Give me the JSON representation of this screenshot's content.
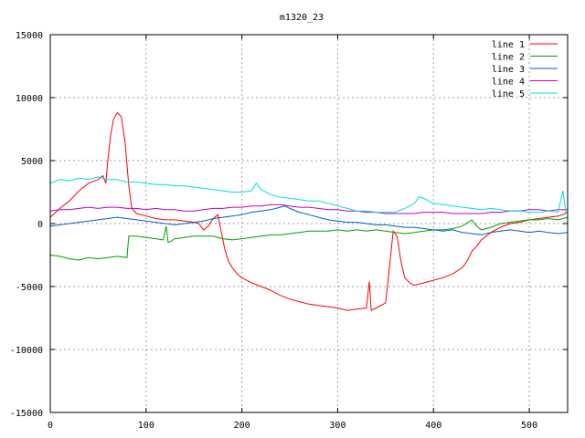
{
  "chart_data": {
    "type": "line",
    "title": "m1320_23",
    "xlabel": "",
    "ylabel": "",
    "xlim": [
      0,
      540
    ],
    "ylim": [
      -15000,
      15000
    ],
    "x_ticks": [
      0,
      100,
      200,
      300,
      400,
      500
    ],
    "y_ticks": [
      -15000,
      -10000,
      -5000,
      0,
      5000,
      10000,
      15000
    ],
    "grid": true,
    "legend_position": "top-right",
    "series": [
      {
        "name": "line 1",
        "color": "#ff0000",
        "points": [
          [
            0,
            500
          ],
          [
            10,
            1200
          ],
          [
            20,
            1800
          ],
          [
            30,
            2600
          ],
          [
            40,
            3200
          ],
          [
            50,
            3500
          ],
          [
            55,
            3800
          ],
          [
            58,
            3200
          ],
          [
            60,
            5000
          ],
          [
            63,
            7000
          ],
          [
            66,
            8300
          ],
          [
            70,
            8800
          ],
          [
            74,
            8500
          ],
          [
            78,
            6500
          ],
          [
            82,
            3000
          ],
          [
            85,
            1200
          ],
          [
            90,
            800
          ],
          [
            100,
            600
          ],
          [
            110,
            400
          ],
          [
            120,
            300
          ],
          [
            130,
            300
          ],
          [
            140,
            200
          ],
          [
            150,
            100
          ],
          [
            155,
            0
          ],
          [
            160,
            -500
          ],
          [
            165,
            -200
          ],
          [
            170,
            400
          ],
          [
            175,
            700
          ],
          [
            178,
            -500
          ],
          [
            182,
            -2000
          ],
          [
            186,
            -3000
          ],
          [
            190,
            -3500
          ],
          [
            195,
            -4000
          ],
          [
            200,
            -4300
          ],
          [
            210,
            -4700
          ],
          [
            220,
            -5000
          ],
          [
            230,
            -5300
          ],
          [
            240,
            -5700
          ],
          [
            250,
            -6000
          ],
          [
            260,
            -6200
          ],
          [
            270,
            -6400
          ],
          [
            280,
            -6500
          ],
          [
            290,
            -6600
          ],
          [
            300,
            -6700
          ],
          [
            310,
            -6900
          ],
          [
            320,
            -6800
          ],
          [
            330,
            -6700
          ],
          [
            333,
            -4600
          ],
          [
            335,
            -6900
          ],
          [
            340,
            -6700
          ],
          [
            350,
            -6300
          ],
          [
            354,
            -3500
          ],
          [
            358,
            -600
          ],
          [
            362,
            -1000
          ],
          [
            366,
            -3000
          ],
          [
            370,
            -4300
          ],
          [
            375,
            -4700
          ],
          [
            380,
            -4900
          ],
          [
            390,
            -4700
          ],
          [
            400,
            -4500
          ],
          [
            410,
            -4300
          ],
          [
            420,
            -4000
          ],
          [
            430,
            -3500
          ],
          [
            435,
            -3000
          ],
          [
            440,
            -2200
          ],
          [
            445,
            -1800
          ],
          [
            450,
            -1300
          ],
          [
            460,
            -700
          ],
          [
            470,
            -300
          ],
          [
            480,
            0
          ],
          [
            490,
            100
          ],
          [
            500,
            300
          ],
          [
            510,
            400
          ],
          [
            520,
            500
          ],
          [
            530,
            600
          ],
          [
            535,
            700
          ],
          [
            540,
            900
          ]
        ]
      },
      {
        "name": "line 2",
        "color": "#00a000",
        "points": [
          [
            0,
            -2500
          ],
          [
            10,
            -2600
          ],
          [
            20,
            -2800
          ],
          [
            30,
            -2900
          ],
          [
            40,
            -2700
          ],
          [
            50,
            -2800
          ],
          [
            60,
            -2700
          ],
          [
            70,
            -2600
          ],
          [
            80,
            -2700
          ],
          [
            82,
            -1000
          ],
          [
            85,
            -1000
          ],
          [
            90,
            -1000
          ],
          [
            100,
            -1100
          ],
          [
            110,
            -1200
          ],
          [
            118,
            -1300
          ],
          [
            121,
            -200
          ],
          [
            123,
            -1500
          ],
          [
            126,
            -1400
          ],
          [
            130,
            -1200
          ],
          [
            140,
            -1100
          ],
          [
            150,
            -1000
          ],
          [
            160,
            -1000
          ],
          [
            170,
            -1000
          ],
          [
            180,
            -1200
          ],
          [
            190,
            -1300
          ],
          [
            200,
            -1200
          ],
          [
            210,
            -1100
          ],
          [
            220,
            -1000
          ],
          [
            230,
            -900
          ],
          [
            240,
            -900
          ],
          [
            250,
            -800
          ],
          [
            260,
            -700
          ],
          [
            270,
            -600
          ],
          [
            280,
            -600
          ],
          [
            290,
            -600
          ],
          [
            300,
            -500
          ],
          [
            310,
            -600
          ],
          [
            320,
            -500
          ],
          [
            330,
            -600
          ],
          [
            340,
            -500
          ],
          [
            350,
            -600
          ],
          [
            360,
            -700
          ],
          [
            370,
            -800
          ],
          [
            380,
            -700
          ],
          [
            390,
            -600
          ],
          [
            400,
            -500
          ],
          [
            410,
            -500
          ],
          [
            420,
            -400
          ],
          [
            430,
            -200
          ],
          [
            440,
            300
          ],
          [
            445,
            -200
          ],
          [
            450,
            -500
          ],
          [
            460,
            -300
          ],
          [
            470,
            0
          ],
          [
            480,
            100
          ],
          [
            490,
            200
          ],
          [
            500,
            300
          ],
          [
            510,
            300
          ],
          [
            520,
            400
          ],
          [
            530,
            300
          ],
          [
            540,
            500
          ]
        ]
      },
      {
        "name": "line 3",
        "color": "#0060c0",
        "points": [
          [
            0,
            -200
          ],
          [
            10,
            -100
          ],
          [
            20,
            0
          ],
          [
            30,
            100
          ],
          [
            40,
            200
          ],
          [
            50,
            300
          ],
          [
            60,
            400
          ],
          [
            70,
            500
          ],
          [
            80,
            400
          ],
          [
            90,
            300
          ],
          [
            100,
            200
          ],
          [
            110,
            100
          ],
          [
            120,
            0
          ],
          [
            130,
            -100
          ],
          [
            140,
            0
          ],
          [
            150,
            100
          ],
          [
            160,
            200
          ],
          [
            170,
            400
          ],
          [
            180,
            500
          ],
          [
            190,
            600
          ],
          [
            200,
            700
          ],
          [
            210,
            900
          ],
          [
            220,
            1000
          ],
          [
            230,
            1100
          ],
          [
            240,
            1300
          ],
          [
            245,
            1400
          ],
          [
            250,
            1200
          ],
          [
            260,
            900
          ],
          [
            270,
            700
          ],
          [
            280,
            500
          ],
          [
            290,
            300
          ],
          [
            300,
            200
          ],
          [
            310,
            100
          ],
          [
            320,
            100
          ],
          [
            330,
            0
          ],
          [
            340,
            -100
          ],
          [
            350,
            -100
          ],
          [
            360,
            -200
          ],
          [
            370,
            -300
          ],
          [
            380,
            -300
          ],
          [
            390,
            -400
          ],
          [
            400,
            -500
          ],
          [
            410,
            -600
          ],
          [
            420,
            -500
          ],
          [
            430,
            -700
          ],
          [
            440,
            -800
          ],
          [
            450,
            -900
          ],
          [
            460,
            -700
          ],
          [
            470,
            -600
          ],
          [
            480,
            -500
          ],
          [
            490,
            -600
          ],
          [
            500,
            -700
          ],
          [
            510,
            -600
          ],
          [
            520,
            -700
          ],
          [
            530,
            -800
          ],
          [
            540,
            -700
          ]
        ]
      },
      {
        "name": "line 4",
        "color": "#c000c0",
        "points": [
          [
            0,
            1000
          ],
          [
            10,
            1100
          ],
          [
            20,
            1100
          ],
          [
            30,
            1200
          ],
          [
            40,
            1300
          ],
          [
            50,
            1200
          ],
          [
            60,
            1300
          ],
          [
            70,
            1300
          ],
          [
            80,
            1200
          ],
          [
            90,
            1200
          ],
          [
            100,
            1100
          ],
          [
            110,
            1200
          ],
          [
            120,
            1100
          ],
          [
            130,
            1100
          ],
          [
            140,
            1000
          ],
          [
            150,
            1000
          ],
          [
            160,
            1100
          ],
          [
            170,
            1200
          ],
          [
            180,
            1200
          ],
          [
            190,
            1300
          ],
          [
            200,
            1300
          ],
          [
            210,
            1400
          ],
          [
            220,
            1400
          ],
          [
            230,
            1500
          ],
          [
            240,
            1500
          ],
          [
            250,
            1400
          ],
          [
            260,
            1300
          ],
          [
            270,
            1300
          ],
          [
            280,
            1200
          ],
          [
            290,
            1100
          ],
          [
            300,
            1100
          ],
          [
            310,
            1000
          ],
          [
            320,
            1000
          ],
          [
            330,
            900
          ],
          [
            340,
            900
          ],
          [
            350,
            800
          ],
          [
            360,
            800
          ],
          [
            370,
            800
          ],
          [
            380,
            800
          ],
          [
            390,
            900
          ],
          [
            400,
            900
          ],
          [
            410,
            900
          ],
          [
            420,
            800
          ],
          [
            430,
            800
          ],
          [
            440,
            800
          ],
          [
            450,
            800
          ],
          [
            460,
            900
          ],
          [
            470,
            900
          ],
          [
            480,
            1000
          ],
          [
            490,
            1000
          ],
          [
            500,
            1100
          ],
          [
            510,
            1100
          ],
          [
            520,
            1000
          ],
          [
            530,
            1100
          ],
          [
            540,
            1100
          ]
        ]
      },
      {
        "name": "line 5",
        "color": "#00e0e0",
        "points": [
          [
            0,
            3200
          ],
          [
            10,
            3500
          ],
          [
            20,
            3400
          ],
          [
            30,
            3600
          ],
          [
            40,
            3500
          ],
          [
            50,
            3700
          ],
          [
            60,
            3500
          ],
          [
            70,
            3500
          ],
          [
            80,
            3300
          ],
          [
            90,
            3300
          ],
          [
            100,
            3200
          ],
          [
            110,
            3100
          ],
          [
            120,
            3100
          ],
          [
            130,
            3000
          ],
          [
            140,
            3000
          ],
          [
            150,
            2900
          ],
          [
            160,
            2800
          ],
          [
            170,
            2700
          ],
          [
            180,
            2600
          ],
          [
            190,
            2500
          ],
          [
            200,
            2500
          ],
          [
            210,
            2600
          ],
          [
            215,
            3200
          ],
          [
            220,
            2700
          ],
          [
            230,
            2300
          ],
          [
            240,
            2100
          ],
          [
            250,
            2000
          ],
          [
            260,
            1900
          ],
          [
            270,
            1800
          ],
          [
            280,
            1800
          ],
          [
            290,
            1600
          ],
          [
            300,
            1400
          ],
          [
            310,
            1200
          ],
          [
            320,
            1000
          ],
          [
            330,
            1000
          ],
          [
            340,
            900
          ],
          [
            350,
            900
          ],
          [
            360,
            900
          ],
          [
            370,
            1200
          ],
          [
            380,
            1600
          ],
          [
            385,
            2100
          ],
          [
            390,
            2000
          ],
          [
            400,
            1600
          ],
          [
            410,
            1500
          ],
          [
            420,
            1400
          ],
          [
            430,
            1300
          ],
          [
            440,
            1200
          ],
          [
            450,
            1100
          ],
          [
            460,
            1200
          ],
          [
            470,
            1100
          ],
          [
            480,
            1000
          ],
          [
            490,
            1000
          ],
          [
            500,
            900
          ],
          [
            510,
            900
          ],
          [
            520,
            1000
          ],
          [
            530,
            900
          ],
          [
            535,
            2600
          ],
          [
            538,
            900
          ],
          [
            540,
            800
          ]
        ]
      }
    ]
  }
}
